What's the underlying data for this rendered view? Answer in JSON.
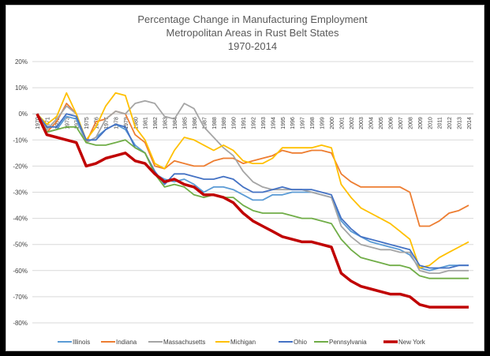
{
  "chart_data": {
    "type": "line",
    "title": [
      "Percentage Change in Manufacturing Employment",
      "Metropolitan Areas in Rust Belt States",
      "1970-2014"
    ],
    "xlabel": "",
    "ylabel": "",
    "ylim": [
      -80,
      20
    ],
    "yticks": [
      20,
      10,
      0,
      -10,
      -20,
      -30,
      -40,
      -50,
      -60,
      -70,
      -80
    ],
    "ytick_labels": [
      "20%",
      "10%",
      "0%",
      "-10%",
      "-20%",
      "-30%",
      "-40%",
      "-50%",
      "-60%",
      "-70%",
      "-80%"
    ],
    "x": [
      1970,
      1971,
      1972,
      1973,
      1974,
      1975,
      1976,
      1977,
      1978,
      1979,
      1980,
      1981,
      1982,
      1983,
      1984,
      1985,
      1986,
      1987,
      1988,
      1989,
      1990,
      1991,
      1992,
      1993,
      1994,
      1995,
      1996,
      1997,
      1998,
      1999,
      2000,
      2001,
      2002,
      2003,
      2004,
      2005,
      2006,
      2007,
      2008,
      2009,
      2010,
      2011,
      2012,
      2013,
      2014
    ],
    "grid": true,
    "legend_position": "bottom",
    "series": [
      {
        "name": "Illinois",
        "color": "#5b9bd5",
        "values": [
          0,
          -7,
          -6,
          -1,
          -2,
          -11,
          -9,
          -6,
          -4,
          -6,
          -12,
          -15,
          -23,
          -25,
          -26,
          -25,
          -27,
          -30,
          -28,
          -28,
          -29,
          -31,
          -33,
          -33,
          -31,
          -31,
          -30,
          -30,
          -30,
          -31,
          -32,
          -41,
          -45,
          -47,
          -49,
          -50,
          -51,
          -52,
          -54,
          -59,
          -60,
          -59,
          -58,
          -58,
          -58
        ]
      },
      {
        "name": "Indiana",
        "color": "#ed7d31",
        "values": [
          0,
          -7,
          -3,
          4,
          0,
          -11,
          -3,
          -2,
          1,
          0,
          -8,
          -11,
          -20,
          -21,
          -18,
          -19,
          -20,
          -20,
          -18,
          -17,
          -17,
          -19,
          -18,
          -17,
          -16,
          -14,
          -15,
          -15,
          -14,
          -14,
          -15,
          -23,
          -26,
          -28,
          -28,
          -28,
          -28,
          -28,
          -30,
          -43,
          -43,
          -41,
          -38,
          -37,
          -35
        ]
      },
      {
        "name": "Massachusetts",
        "color": "#a5a5a5",
        "values": [
          0,
          -6,
          -2,
          3,
          0,
          -11,
          -9,
          -2,
          1,
          0,
          4,
          5,
          4,
          -1,
          -2,
          4,
          2,
          -5,
          -9,
          -13,
          -16,
          -22,
          -26,
          -28,
          -29,
          -29,
          -29,
          -29,
          -30,
          -31,
          -32,
          -43,
          -47,
          -50,
          -51,
          -52,
          -52,
          -53,
          -53,
          -60,
          -61,
          -61,
          -60,
          -60,
          -60
        ]
      },
      {
        "name": "Michigan",
        "color": "#ffc000",
        "values": [
          0,
          -4,
          -1,
          8,
          0,
          -10,
          -5,
          3,
          8,
          7,
          -5,
          -10,
          -19,
          -21,
          -14,
          -9,
          -10,
          -12,
          -14,
          -12,
          -14,
          -18,
          -19,
          -19,
          -17,
          -13,
          -13,
          -13,
          -13,
          -12,
          -13,
          -27,
          -32,
          -36,
          -38,
          -40,
          -42,
          -45,
          -48,
          -59,
          -58,
          -55,
          -53,
          -51,
          -49
        ]
      },
      {
        "name": "Ohio",
        "color": "#4472c4",
        "values": [
          0,
          -5,
          -5,
          0,
          -1,
          -10,
          -10,
          -6,
          -4,
          -5,
          -13,
          -15,
          -22,
          -27,
          -23,
          -23,
          -24,
          -25,
          -25,
          -24,
          -25,
          -28,
          -30,
          -30,
          -29,
          -28,
          -29,
          -29,
          -29,
          -30,
          -31,
          -40,
          -44,
          -47,
          -48,
          -49,
          -50,
          -51,
          -52,
          -58,
          -59,
          -59,
          -59,
          -58,
          -58
        ]
      },
      {
        "name": "Pennsylvania",
        "color": "#70ad47",
        "values": [
          0,
          -7,
          -6,
          -5,
          -5,
          -11,
          -12,
          -12,
          -11,
          -10,
          -13,
          -15,
          -23,
          -28,
          -27,
          -28,
          -31,
          -32,
          -31,
          -32,
          -32,
          -35,
          -37,
          -38,
          -38,
          -38,
          -39,
          -40,
          -40,
          -41,
          -42,
          -48,
          -52,
          -55,
          -56,
          -57,
          -58,
          -58,
          -59,
          -62,
          -63,
          -63,
          -63,
          -63,
          -63
        ]
      },
      {
        "name": "New York",
        "color": "#c00000",
        "values": [
          0,
          -8,
          -9,
          -10,
          -11,
          -20,
          -19,
          -17,
          -16,
          -15,
          -18,
          -19,
          -23,
          -26,
          -25,
          -27,
          -28,
          -31,
          -31,
          -32,
          -34,
          -38,
          -41,
          -43,
          -45,
          -47,
          -48,
          -49,
          -49,
          -50,
          -51,
          -61,
          -64,
          -66,
          -67,
          -68,
          -69,
          -69,
          -70,
          -73,
          -74,
          -74,
          -74,
          -74,
          -74
        ]
      }
    ]
  }
}
